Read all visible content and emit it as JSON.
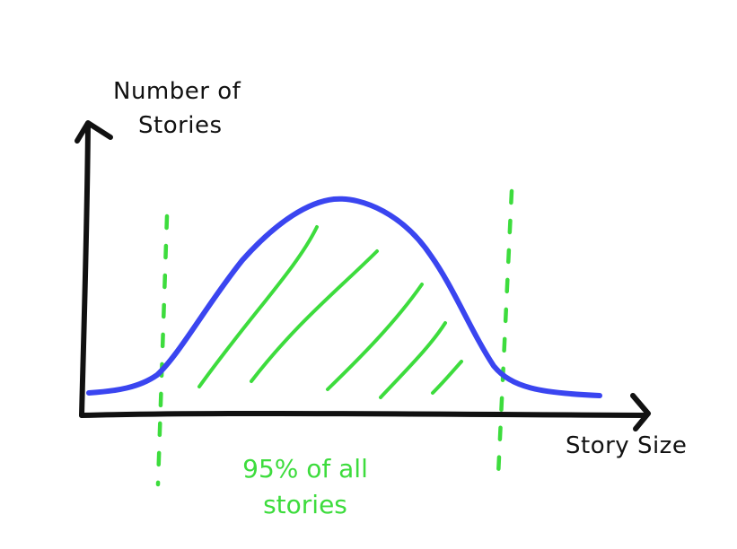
{
  "chart_data": {
    "type": "area",
    "title": "",
    "xlabel": "Story Size",
    "ylabel": [
      "Number of",
      "Stories"
    ],
    "curve": {
      "name": "",
      "shape": "bell",
      "color": "#3a45f0"
    },
    "interval": {
      "coverage_percent": 95,
      "label": [
        "95% of all",
        "stories"
      ],
      "color": "#3ddc3d",
      "boundary_style": "dashed",
      "fill_style": "hatched"
    },
    "grid": false,
    "ticks": false
  }
}
